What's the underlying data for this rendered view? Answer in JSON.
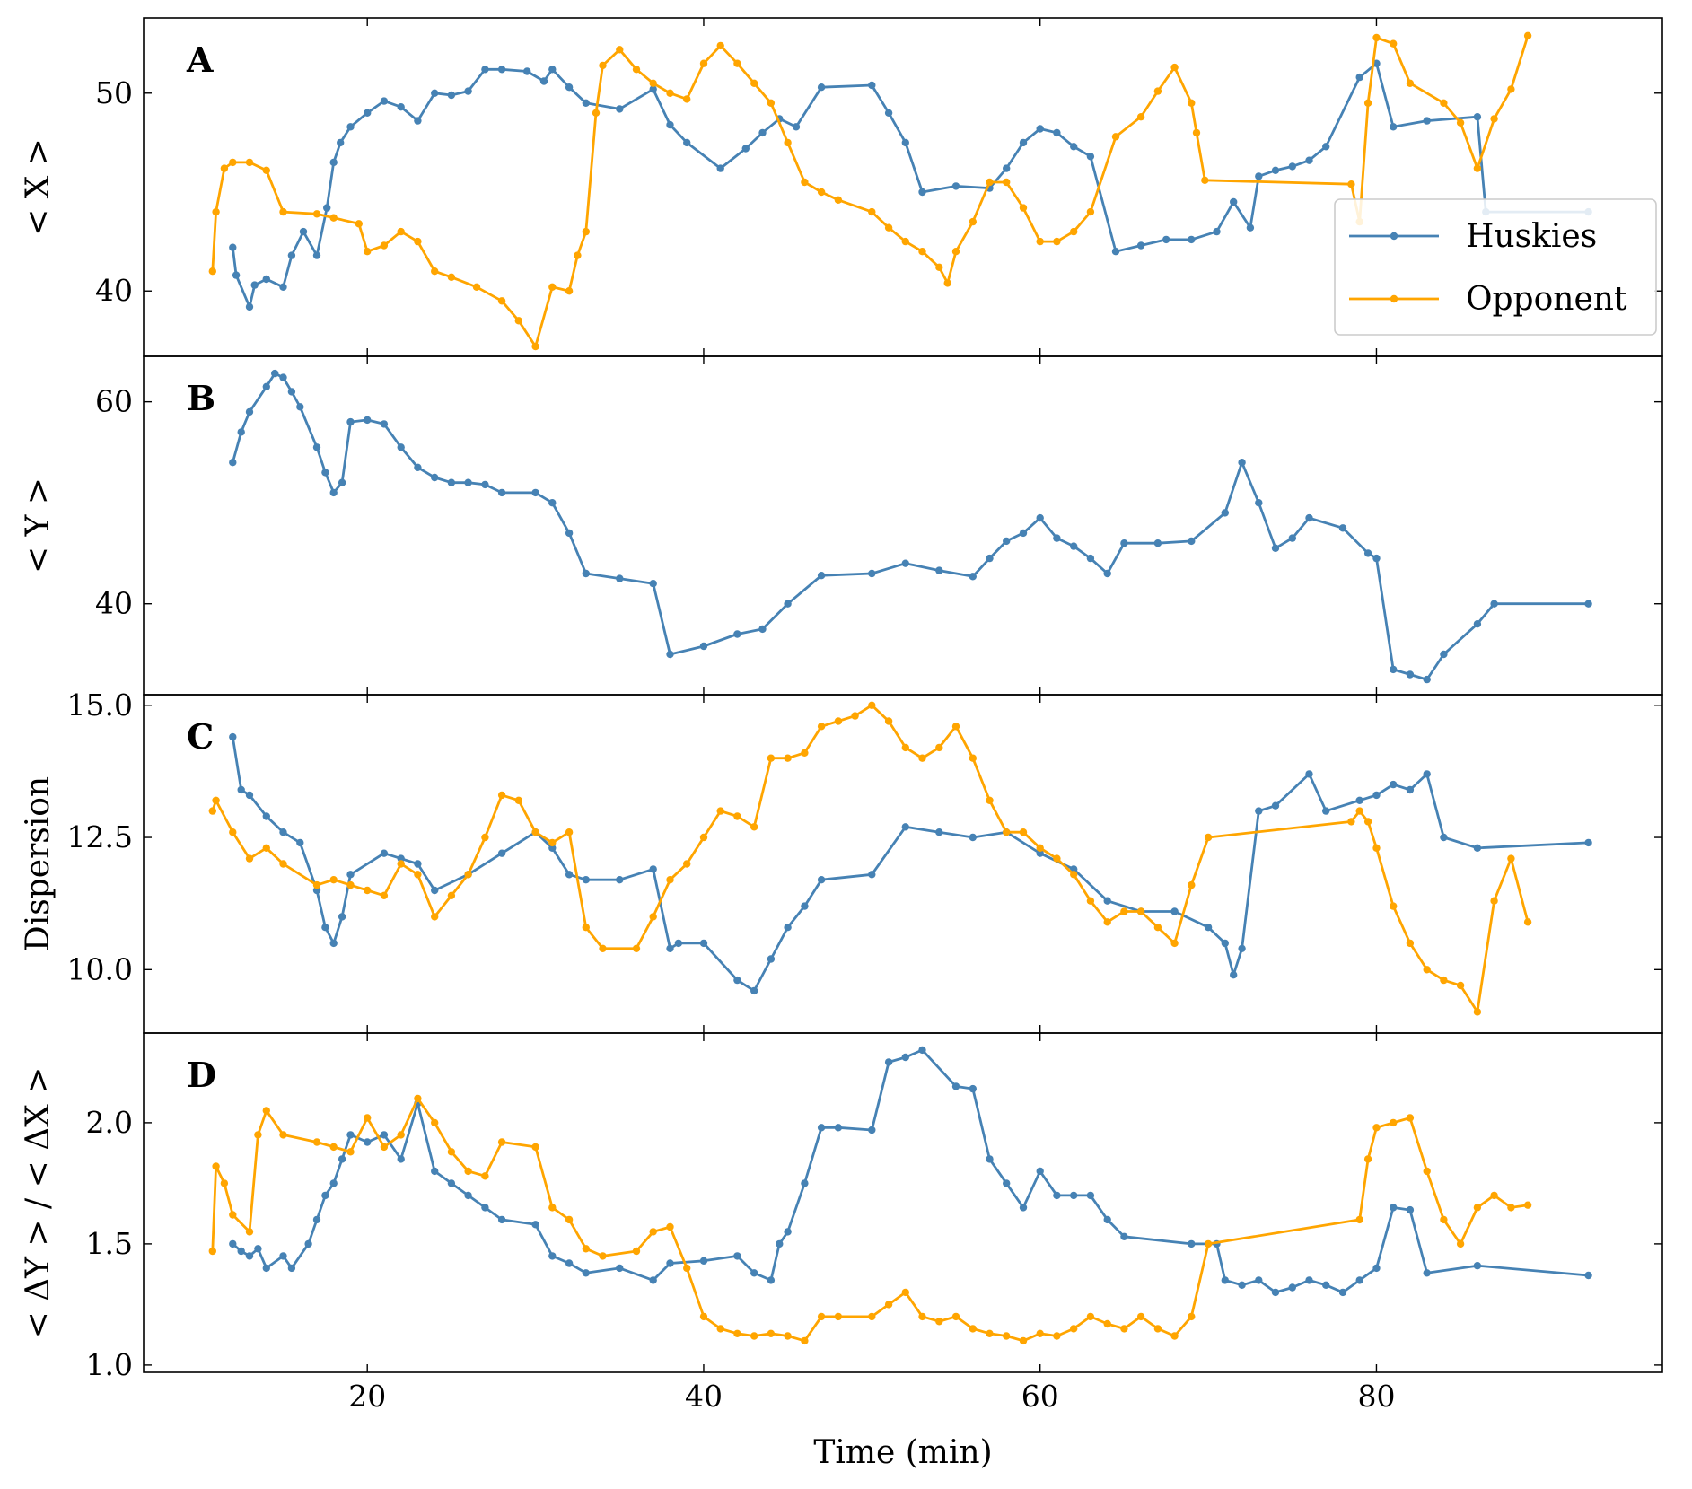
{
  "colors": {
    "huskies": "#4682b4",
    "opponent": "#ffa500",
    "axis": "#000000",
    "legend_border": "#cccccc"
  },
  "xaxis": {
    "label": "Time (min)",
    "ticks": [
      20,
      40,
      60,
      80
    ],
    "tick_labels": [
      "20",
      "40",
      "60",
      "80"
    ],
    "range": [
      6.7,
      97
    ]
  },
  "legend": {
    "placement": "lower-right of panel A",
    "entries": [
      {
        "label": "Huskies",
        "color": "#4682b4"
      },
      {
        "label": "Opponent",
        "color": "#ffa500"
      }
    ]
  },
  "chart_data": [
    {
      "panel": "A",
      "type": "line",
      "ylabel": "< X >",
      "ylim": [
        36.7,
        53.8
      ],
      "yticks": [
        40,
        50
      ],
      "ytick_labels": [
        "40",
        "50"
      ],
      "series": [
        {
          "name": "Huskies",
          "x": [
            12,
            12.2,
            13,
            13.3,
            14,
            15,
            15.5,
            16.2,
            17,
            17.6,
            18,
            18.4,
            19,
            20,
            21,
            22,
            23,
            24,
            25,
            26,
            27,
            28,
            29.5,
            30.5,
            31,
            32,
            33,
            35,
            37,
            38,
            39,
            41,
            42.5,
            43.5,
            44.5,
            45.5,
            47,
            50,
            51,
            52,
            53,
            55,
            57,
            58,
            59,
            60,
            61,
            62,
            63,
            64.5,
            66,
            67.5,
            69,
            70.5,
            71.5,
            72.5,
            73,
            74,
            75,
            76,
            77,
            79,
            80,
            81,
            83,
            86,
            86.5,
            92.6
          ],
          "y": [
            42.2,
            40.8,
            39.2,
            40.3,
            40.6,
            40.2,
            41.8,
            43,
            41.8,
            44.2,
            46.5,
            47.5,
            48.3,
            49,
            49.6,
            49.3,
            48.6,
            50,
            49.9,
            50.1,
            51.2,
            51.2,
            51.1,
            50.6,
            51.2,
            50.3,
            49.5,
            49.2,
            50.2,
            48.4,
            47.5,
            46.2,
            47.2,
            48,
            48.7,
            48.3,
            50.3,
            50.4,
            49,
            47.5,
            45,
            45.3,
            45.2,
            46.2,
            47.5,
            48.2,
            48,
            47.3,
            46.8,
            42,
            42.3,
            42.6,
            42.6,
            43,
            44.5,
            43.2,
            45.8,
            46.1,
            46.3,
            46.6,
            47.3,
            50.8,
            51.5,
            48.3,
            48.6,
            48.8,
            44,
            44
          ],
          "markers": true
        },
        {
          "name": "Opponent",
          "x": [
            10.8,
            11,
            11.5,
            12,
            13,
            14,
            15,
            17,
            18,
            19.5,
            20,
            21,
            22,
            23,
            24,
            25,
            26.5,
            28,
            29,
            30,
            31,
            32,
            32.5,
            33,
            33.6,
            34,
            35,
            36,
            37,
            38,
            39,
            40,
            41,
            42,
            43,
            44,
            45,
            46,
            47,
            48,
            50,
            51,
            52,
            53,
            54,
            54.5,
            55,
            56,
            57,
            58,
            59,
            60,
            61,
            62,
            63,
            64.5,
            66,
            67,
            68,
            69,
            69.3,
            69.8,
            78.5,
            79,
            79.5,
            80,
            81,
            82,
            84,
            85,
            86,
            87,
            88,
            89
          ],
          "y": [
            41,
            44,
            46.2,
            46.5,
            46.5,
            46.1,
            44,
            43.9,
            43.7,
            43.4,
            42,
            42.3,
            43,
            42.5,
            41,
            40.7,
            40.2,
            39.5,
            38.5,
            37.2,
            40.2,
            40,
            41.8,
            43,
            49,
            51.4,
            52.2,
            51.2,
            50.5,
            50,
            49.7,
            51.5,
            52.4,
            51.5,
            50.5,
            49.5,
            47.5,
            45.5,
            45,
            44.6,
            44,
            43.2,
            42.5,
            42,
            41.2,
            40.4,
            42,
            43.5,
            45.5,
            45.5,
            44.2,
            42.5,
            42.5,
            43,
            44,
            47.8,
            48.8,
            50.1,
            51.3,
            49.5,
            48,
            45.6,
            45.4,
            43.5,
            49.5,
            52.8,
            52.5,
            50.5,
            49.5,
            48.5,
            46.2,
            48.7,
            50.2,
            52.9
          ],
          "markers": true
        }
      ]
    },
    {
      "panel": "B",
      "type": "line",
      "ylabel": "< Y >",
      "ylim": [
        31,
        64.5
      ],
      "yticks": [
        40,
        60
      ],
      "ytick_labels": [
        "40",
        "60"
      ],
      "series": [
        {
          "name": "Huskies",
          "x": [
            12,
            12.5,
            13,
            14,
            14.5,
            15,
            15.5,
            16,
            17,
            17.5,
            18,
            18.5,
            19,
            20,
            21,
            22,
            23,
            24,
            25,
            26,
            27,
            28,
            30,
            31,
            32,
            33,
            35,
            37,
            38,
            40,
            42,
            43.5,
            45,
            47,
            50,
            52,
            54,
            56,
            57,
            58,
            59,
            60,
            61,
            62,
            63,
            64,
            65,
            67,
            69,
            71,
            72,
            73,
            74,
            75,
            76,
            78,
            79.5,
            80,
            81,
            82,
            83,
            84,
            86,
            87,
            92.6
          ],
          "y": [
            54,
            57,
            59,
            61.5,
            62.8,
            62.4,
            61,
            59.5,
            55.5,
            53,
            51,
            52,
            58,
            58.2,
            57.8,
            55.5,
            53.5,
            52.5,
            52,
            52,
            51.8,
            51,
            51,
            50,
            47,
            43,
            42.5,
            42,
            35,
            35.8,
            37,
            37.5,
            40,
            42.8,
            43,
            44,
            43.3,
            42.7,
            44.5,
            46.2,
            47,
            48.5,
            46.5,
            45.7,
            44.5,
            43,
            46,
            46,
            46.2,
            49,
            54,
            50,
            45.5,
            46.5,
            48.5,
            47.5,
            45,
            44.5,
            33.5,
            33,
            32.5,
            35,
            38,
            40,
            40
          ],
          "markers": true
        }
      ]
    },
    {
      "panel": "C",
      "type": "line",
      "ylabel": "Dispersion",
      "ylim": [
        8.8,
        15.2
      ],
      "yticks": [
        10.0,
        12.5,
        15.0
      ],
      "ytick_labels": [
        "10.0",
        "12.5",
        "15.0"
      ],
      "series": [
        {
          "name": "Huskies",
          "x": [
            12,
            12.5,
            13,
            14,
            15,
            16,
            17,
            17.5,
            18,
            18.5,
            19,
            21,
            22,
            23,
            24,
            26,
            28,
            30,
            31,
            32,
            33,
            35,
            37,
            38,
            38.5,
            40,
            42,
            43,
            44,
            45,
            46,
            47,
            50,
            52,
            54,
            56,
            58,
            60,
            62,
            64,
            66,
            68,
            70,
            71,
            71.5,
            72,
            73,
            74,
            76,
            77,
            79,
            80,
            81,
            82,
            83,
            84,
            86,
            92.6
          ],
          "y": [
            14.4,
            13.4,
            13.3,
            12.9,
            12.6,
            12.4,
            11.5,
            10.8,
            10.5,
            11,
            11.8,
            12.2,
            12.1,
            12,
            11.5,
            11.8,
            12.2,
            12.6,
            12.3,
            11.8,
            11.7,
            11.7,
            11.9,
            10.4,
            10.5,
            10.5,
            9.8,
            9.6,
            10.2,
            10.8,
            11.2,
            11.7,
            11.8,
            12.7,
            12.6,
            12.5,
            12.6,
            12.2,
            11.9,
            11.3,
            11.1,
            11.1,
            10.8,
            10.5,
            9.9,
            10.4,
            13,
            13.1,
            13.7,
            13,
            13.2,
            13.3,
            13.5,
            13.4,
            13.7,
            12.5,
            12.3,
            12.4
          ],
          "markers": true
        },
        {
          "name": "Opponent",
          "x": [
            10.8,
            11,
            12,
            13,
            14,
            15,
            17,
            18,
            19,
            20,
            21,
            22,
            23,
            24,
            25,
            26,
            27,
            28,
            29,
            30,
            31,
            32,
            33,
            34,
            36,
            37,
            38,
            39,
            40,
            41,
            42,
            43,
            44,
            45,
            46,
            47,
            48,
            49,
            50,
            51,
            52,
            53,
            54,
            55,
            56,
            57,
            58,
            59,
            60,
            61,
            62,
            63,
            64,
            65,
            66,
            67,
            68,
            69,
            70,
            78.5,
            79,
            79.5,
            80,
            81,
            82,
            83,
            84,
            85,
            86,
            87,
            88,
            89
          ],
          "y": [
            13,
            13.2,
            12.6,
            12.1,
            12.3,
            12,
            11.6,
            11.7,
            11.6,
            11.5,
            11.4,
            12,
            11.8,
            11,
            11.4,
            11.8,
            12.5,
            13.3,
            13.2,
            12.6,
            12.4,
            12.6,
            10.8,
            10.4,
            10.4,
            11,
            11.7,
            12,
            12.5,
            13,
            12.9,
            12.7,
            14,
            14,
            14.1,
            14.6,
            14.7,
            14.8,
            15,
            14.7,
            14.2,
            14,
            14.2,
            14.6,
            14,
            13.2,
            12.6,
            12.6,
            12.3,
            12.1,
            11.8,
            11.3,
            10.9,
            11.1,
            11.1,
            10.8,
            10.5,
            11.6,
            12.5,
            12.8,
            13,
            12.8,
            12.3,
            11.2,
            10.5,
            10,
            9.8,
            9.7,
            9.2,
            11.3,
            12.1,
            10.9
          ],
          "markers": true
        }
      ]
    },
    {
      "panel": "D",
      "type": "line",
      "ylabel": "< ΔY > / < ΔX >",
      "ylim": [
        0.97,
        2.37
      ],
      "yticks": [
        1.0,
        1.5,
        2.0
      ],
      "ytick_labels": [
        "1.0",
        "1.5",
        "2.0"
      ],
      "series": [
        {
          "name": "Huskies",
          "x": [
            12,
            12.5,
            13,
            13.5,
            14,
            15,
            15.5,
            16.5,
            17,
            17.5,
            18,
            18.5,
            19,
            20,
            21,
            22,
            23,
            24,
            25,
            26,
            27,
            28,
            30,
            31,
            32,
            33,
            35,
            37,
            38,
            40,
            42,
            43,
            44,
            44.5,
            45,
            46,
            47,
            48,
            50,
            51,
            52,
            53,
            55,
            56,
            57,
            58,
            59,
            60,
            61,
            62,
            63,
            64,
            65,
            69,
            70.5,
            71,
            72,
            73,
            74,
            75,
            76,
            77,
            78,
            79,
            80,
            81,
            82,
            83,
            86,
            92.6
          ],
          "y": [
            1.5,
            1.47,
            1.45,
            1.48,
            1.4,
            1.45,
            1.4,
            1.5,
            1.6,
            1.7,
            1.75,
            1.85,
            1.95,
            1.92,
            1.95,
            1.85,
            2.08,
            1.8,
            1.75,
            1.7,
            1.65,
            1.6,
            1.58,
            1.45,
            1.42,
            1.38,
            1.4,
            1.35,
            1.42,
            1.43,
            1.45,
            1.38,
            1.35,
            1.5,
            1.55,
            1.75,
            1.98,
            1.98,
            1.97,
            2.25,
            2.27,
            2.3,
            2.15,
            2.14,
            1.85,
            1.75,
            1.65,
            1.8,
            1.7,
            1.7,
            1.7,
            1.6,
            1.53,
            1.5,
            1.5,
            1.35,
            1.33,
            1.35,
            1.3,
            1.32,
            1.35,
            1.33,
            1.3,
            1.35,
            1.4,
            1.65,
            1.64,
            1.38,
            1.41,
            1.37
          ],
          "markers": true
        },
        {
          "name": "Opponent",
          "x": [
            10.8,
            11,
            11.5,
            12,
            13,
            13.5,
            14,
            15,
            17,
            18,
            19,
            20,
            21,
            22,
            23,
            24,
            25,
            26,
            27,
            28,
            30,
            31,
            32,
            33,
            34,
            36,
            37,
            38,
            39,
            40,
            41,
            42,
            43,
            44,
            45,
            46,
            47,
            48,
            50,
            51,
            52,
            53,
            54,
            55,
            56,
            57,
            58,
            59,
            60,
            61,
            62,
            63,
            64,
            65,
            66,
            67,
            68,
            69,
            70,
            79,
            79.5,
            80,
            81,
            82,
            83,
            84,
            85,
            86,
            87,
            88,
            89
          ],
          "y": [
            1.47,
            1.82,
            1.75,
            1.62,
            1.55,
            1.95,
            2.05,
            1.95,
            1.92,
            1.9,
            1.88,
            2.02,
            1.9,
            1.95,
            2.1,
            2,
            1.88,
            1.8,
            1.78,
            1.92,
            1.9,
            1.65,
            1.6,
            1.48,
            1.45,
            1.47,
            1.55,
            1.57,
            1.4,
            1.2,
            1.15,
            1.13,
            1.12,
            1.13,
            1.12,
            1.1,
            1.2,
            1.2,
            1.2,
            1.25,
            1.3,
            1.2,
            1.18,
            1.2,
            1.15,
            1.13,
            1.12,
            1.1,
            1.13,
            1.12,
            1.15,
            1.2,
            1.17,
            1.15,
            1.2,
            1.15,
            1.12,
            1.2,
            1.5,
            1.6,
            1.85,
            1.98,
            2,
            2.02,
            1.8,
            1.6,
            1.5,
            1.65,
            1.7,
            1.65,
            1.66
          ],
          "markers": true
        }
      ]
    }
  ]
}
